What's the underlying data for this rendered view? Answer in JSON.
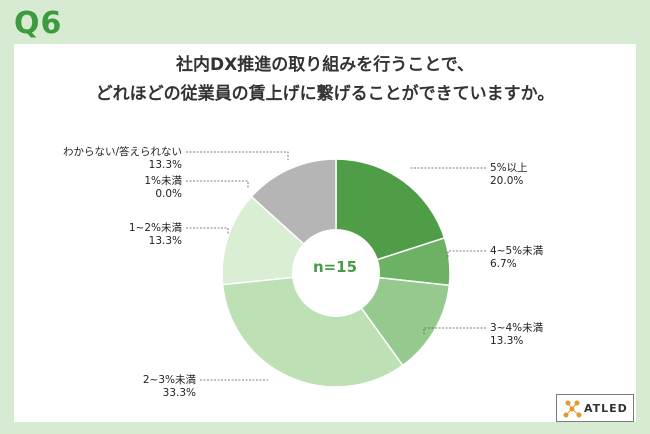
{
  "header": {
    "question_number": "Q6",
    "title_line1": "社内DX推進の取り組みを行うことで、",
    "title_line2": "どれほどの従業員の賃上げに繋げることができていますか。"
  },
  "logo": {
    "text": "ATLED"
  },
  "chart_data": {
    "type": "pie",
    "donut": true,
    "center_label": "n=15",
    "slices": [
      {
        "label": "5%以上",
        "value": 20.0,
        "value_label": "20.0%",
        "color": "#4f9d47"
      },
      {
        "label": "4~5%未満",
        "value": 6.7,
        "value_label": "6.7%",
        "color": "#6db165"
      },
      {
        "label": "3~4%未満",
        "value": 13.3,
        "value_label": "13.3%",
        "color": "#96c98e"
      },
      {
        "label": "2~3%未満",
        "value": 33.3,
        "value_label": "33.3%",
        "color": "#bde0b5"
      },
      {
        "label": "1~2%未満",
        "value": 13.3,
        "value_label": "13.3%",
        "color": "#daeed4"
      },
      {
        "label": "1%未満",
        "value": 0.0,
        "value_label": "0.0%",
        "color": "#e8f3e4"
      },
      {
        "label": "わからない/答えられない",
        "value": 13.3,
        "value_label": "13.3%",
        "color": "#b5b5b5"
      }
    ]
  }
}
